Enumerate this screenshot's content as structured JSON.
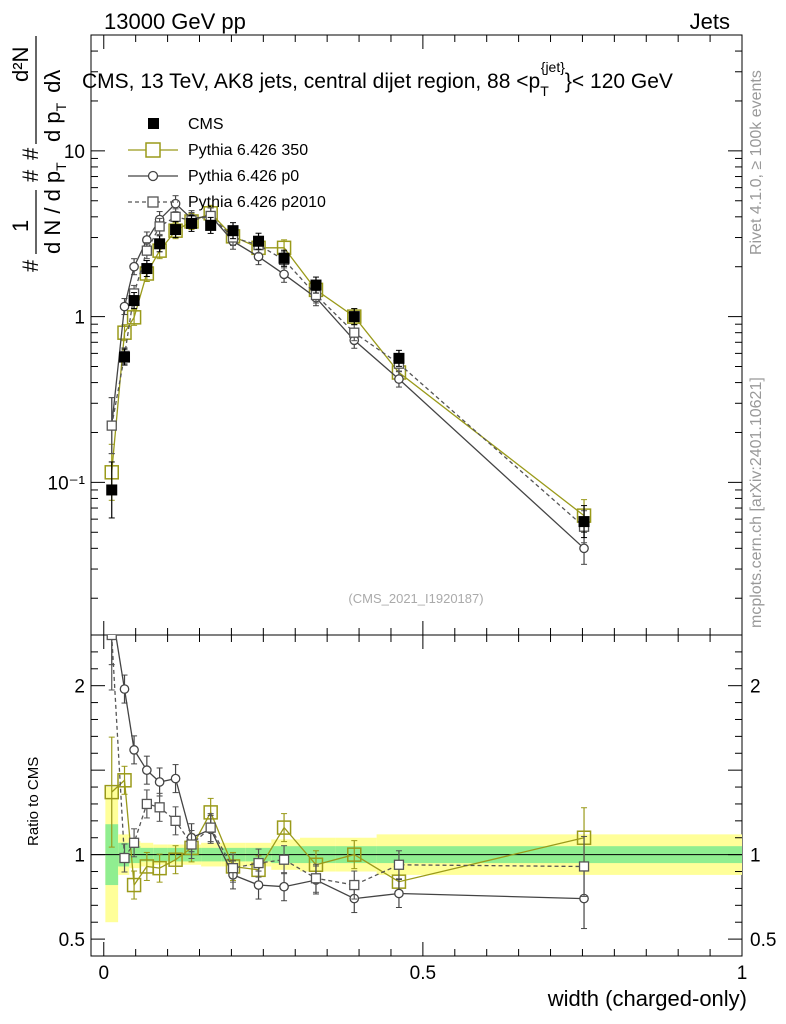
{
  "header": {
    "left": "13000 GeV pp",
    "right": "Jets"
  },
  "side_text": {
    "rivet": "Rivet 4.1.0, ≥ 100k events",
    "mcplots": "mcplots.cern.ch [arXiv:2401.10621]"
  },
  "chart_data": {
    "type": "line",
    "title": "CMS, 13 TeV, AK8 jets, central dijet region, 88 <p_T^{jet}< 120 GeV",
    "title_parts": {
      "main": "CMS, 13 TeV, AK8 jets, central dijet region, 88 <p",
      "sub": "T",
      "sup": "{jet}",
      "tail": "}< 120 GeV"
    },
    "analysis_id": "(CMS_2021_I1920187)",
    "ylabel_parts": {
      "one": "1",
      "denom": "d N / d p",
      "denom_sub": "T",
      "hash1": "#",
      "hash2": "#",
      "hash3": "#",
      "num": "d²N",
      "den2": "d p",
      "den2_sub": "T",
      "dl": "dλ"
    },
    "xlabel": "width (charged-only)",
    "xlim": [
      -0.02,
      1.0
    ],
    "ylim": [
      0.012,
      50
    ],
    "yscale": "log",
    "ytick_labels": [
      "10⁻¹",
      "1",
      "10"
    ],
    "xtick_labels": [
      "0",
      "0.5",
      "1"
    ],
    "x": [
      0.0125,
      0.0325,
      0.0475,
      0.0675,
      0.0875,
      0.1125,
      0.1375,
      0.1675,
      0.2025,
      0.2425,
      0.2825,
      0.3325,
      0.3925,
      0.4625,
      0.7525
    ],
    "series": [
      {
        "name": "CMS",
        "color": "#000000",
        "marker": "filled-square",
        "line": "none",
        "values": [
          0.09,
          0.57,
          1.25,
          1.95,
          2.75,
          3.35,
          3.65,
          3.55,
          3.3,
          2.85,
          2.25,
          1.55,
          1.0,
          0.56,
          0.058
        ]
      },
      {
        "name": "Pythia 6.426 350",
        "color": "#9a9a1a",
        "marker": "open-square",
        "line": "solid",
        "values": [
          0.115,
          0.8,
          0.99,
          1.82,
          2.5,
          3.3,
          3.75,
          4.2,
          3.05,
          2.6,
          2.6,
          1.45,
          1.0,
          0.46,
          0.063
        ]
      },
      {
        "name": "Pythia 6.426 p0",
        "color": "#444444",
        "marker": "open-circle",
        "line": "solid",
        "values": [
          0.22,
          1.15,
          2.0,
          2.9,
          3.85,
          4.8,
          3.9,
          4.05,
          2.85,
          2.3,
          1.8,
          1.3,
          0.72,
          0.42,
          0.04
        ]
      },
      {
        "name": "Pythia 6.426 p2010",
        "color": "#555555",
        "marker": "open-square-small",
        "line": "dashed",
        "values": [
          0.22,
          0.58,
          1.38,
          2.5,
          3.5,
          4.0,
          3.8,
          4.05,
          3.0,
          2.7,
          2.2,
          1.35,
          0.8,
          0.52,
          0.054
        ]
      }
    ],
    "ratio": {
      "ylabel": "Ratio to CMS",
      "ylim": [
        0.4,
        2.3
      ],
      "ytick_labels": [
        "0.5",
        "1",
        "2"
      ],
      "band_inner_halfwidth": [
        0.18,
        0.07,
        0.05,
        0.04,
        0.04,
        0.04,
        0.04,
        0.04,
        0.04,
        0.04,
        0.05,
        0.05,
        0.05,
        0.05,
        0.05
      ],
      "band_outer_halfwidth": [
        0.4,
        0.12,
        0.08,
        0.07,
        0.06,
        0.06,
        0.06,
        0.07,
        0.07,
        0.07,
        0.09,
        0.1,
        0.1,
        0.12,
        0.12
      ],
      "series": [
        {
          "name": "Pythia 6.426 350",
          "values": [
            1.37,
            1.44,
            0.82,
            0.93,
            0.92,
            0.97,
            1.04,
            1.25,
            0.93,
            0.91,
            1.16,
            0.94,
            1.0,
            0.84,
            1.1
          ]
        },
        {
          "name": "Pythia 6.426 p0",
          "values": [
            2.45,
            1.98,
            1.62,
            1.5,
            1.43,
            1.45,
            1.1,
            1.15,
            0.88,
            0.82,
            0.81,
            0.85,
            0.74,
            0.77,
            0.74
          ]
        },
        {
          "name": "Pythia 6.426 p2010",
          "values": [
            2.3,
            0.98,
            1.07,
            1.3,
            1.28,
            1.2,
            1.06,
            1.16,
            0.92,
            0.95,
            0.97,
            0.86,
            0.82,
            0.94,
            0.93
          ]
        }
      ]
    }
  }
}
